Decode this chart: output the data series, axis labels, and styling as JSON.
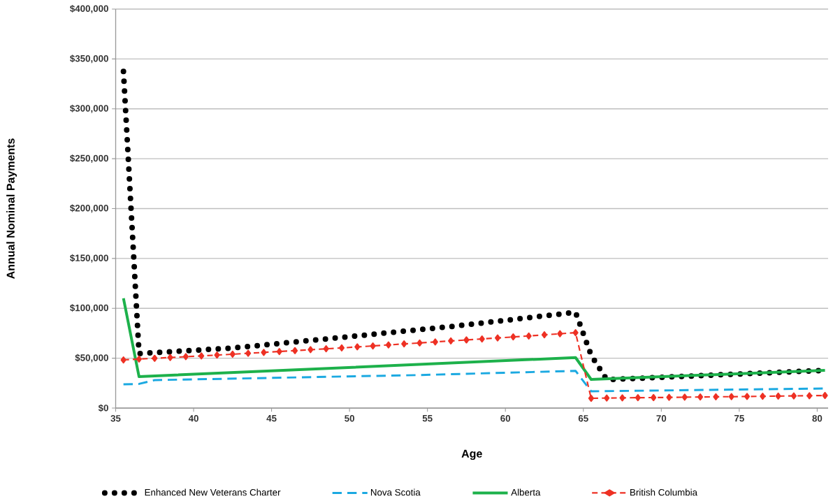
{
  "chart_data": {
    "type": "line",
    "xlabel": "Age",
    "ylabel": "Annual Nominal Payments",
    "xlim": [
      35,
      80.7
    ],
    "ylim": [
      0,
      400000
    ],
    "xticks": [
      35,
      40,
      45,
      50,
      55,
      60,
      65,
      70,
      75,
      80
    ],
    "yticks": [
      {
        "value": 0,
        "label": "$0"
      },
      {
        "value": 50000,
        "label": "$50,000"
      },
      {
        "value": 100000,
        "label": "$100,000"
      },
      {
        "value": 150000,
        "label": "$150,000"
      },
      {
        "value": 200000,
        "label": "$200,000"
      },
      {
        "value": 250000,
        "label": "$250,000"
      },
      {
        "value": 300000,
        "label": "$300,000"
      },
      {
        "value": 350000,
        "label": "$350,000"
      },
      {
        "value": 400000,
        "label": "$400,000"
      }
    ],
    "grid": "y",
    "legend": "bottom",
    "series": [
      {
        "name": "Enhanced New Veterans Charter",
        "color": "#000000",
        "line_style": "dotted",
        "x": [
          35.5,
          36.5,
          42.5,
          48.5,
          56.5,
          64.5,
          65.5,
          66.5,
          80.5
        ],
        "values": [
          337500,
          54600,
          60200,
          69300,
          81700,
          96000,
          53000,
          28500,
          37800
        ]
      },
      {
        "name": "Nova Scotia",
        "color": "#1ba9e1",
        "line_style": "dashed",
        "x": [
          35.5,
          36.5,
          37.5,
          54.5,
          64.5,
          65.5,
          80.5
        ],
        "values": [
          23800,
          24200,
          28000,
          33100,
          37300,
          16800,
          19600
        ]
      },
      {
        "name": "Alberta",
        "color": "#1db14b",
        "line_style": "solid",
        "x": [
          35.5,
          36.5,
          64.5,
          65.5,
          80.5
        ],
        "values": [
          110000,
          31500,
          50600,
          28700,
          37800
        ]
      },
      {
        "name": "British Columbia",
        "color": "#ee3124",
        "line_style": "dashed",
        "marker": "diamond",
        "x": [
          35.5,
          36.5,
          37.5,
          38.5,
          39.5,
          40.5,
          41.5,
          42.5,
          43.5,
          44.5,
          45.5,
          46.5,
          47.5,
          48.5,
          49.5,
          50.5,
          51.5,
          52.5,
          53.5,
          54.5,
          55.5,
          56.5,
          57.5,
          58.5,
          59.5,
          60.5,
          61.5,
          62.5,
          63.5,
          64.5,
          65.5,
          66.5,
          67.5,
          68.5,
          69.5,
          70.5,
          71.5,
          72.5,
          73.5,
          74.5,
          75.5,
          76.5,
          77.5,
          78.5,
          79.5,
          80.5
        ],
        "values": [
          48300,
          49100,
          49900,
          50700,
          51500,
          52300,
          53100,
          54000,
          54900,
          55800,
          56700,
          57600,
          58500,
          59400,
          60300,
          61300,
          62300,
          63300,
          64300,
          65300,
          66300,
          67300,
          68300,
          69300,
          70300,
          71300,
          72300,
          73400,
          74500,
          75600,
          9800,
          10000,
          10200,
          10400,
          10500,
          10700,
          10900,
          11100,
          11300,
          11400,
          11600,
          11800,
          12000,
          12200,
          12400,
          12600
        ]
      }
    ]
  }
}
